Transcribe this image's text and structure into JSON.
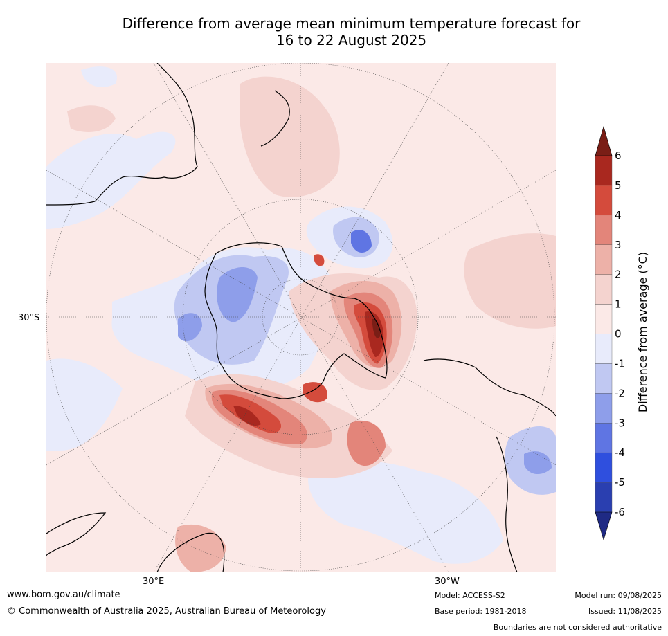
{
  "title": {
    "line1": "Difference from average mean minimum temperature forecast for",
    "line2": "16 to 22 August 2025"
  },
  "map": {
    "labels": {
      "lat_30s": "30°S",
      "lon_30e": "30°E",
      "lon_30w": "30°W"
    },
    "colors": {
      "ocean_neutral": "#fbe9e7",
      "land_line": "#000000"
    }
  },
  "colorbar": {
    "label": "Difference from average (°C)",
    "ticks": [
      "6",
      "5",
      "4",
      "3",
      "2",
      "1",
      "0",
      "-1",
      "-2",
      "-3",
      "-4",
      "-5",
      "-6"
    ],
    "bins": [
      {
        "range": "5 to 6",
        "color": "#a9281f"
      },
      {
        "range": "4 to 5",
        "color": "#d44b3c"
      },
      {
        "range": "3 to 4",
        "color": "#e3857a"
      },
      {
        "range": "2 to 3",
        "color": "#edb1a8"
      },
      {
        "range": "1 to 2",
        "color": "#f4d3cf"
      },
      {
        "range": "0 to 1",
        "color": "#fbe9e7"
      },
      {
        "range": "-1 to 0",
        "color": "#e8ebfb"
      },
      {
        "range": "-2 to -1",
        "color": "#c0c8f2"
      },
      {
        "range": "-3 to -2",
        "color": "#8e9eea"
      },
      {
        "range": "-4 to -3",
        "color": "#5f75e3"
      },
      {
        "range": "-5 to -4",
        "color": "#2f4fde"
      },
      {
        "range": "-6 to -5",
        "color": "#2a3fb0"
      }
    ],
    "over_color": "#7a1e16",
    "under_color": "#1f2a84"
  },
  "footer": {
    "website": "www.bom.gov.au/climate",
    "copyright": "© Commonwealth of Australia 2025, Australian Bureau of Meteorology",
    "model": "Model: ACCESS-S2",
    "base_period": "Base period: 1981-2018",
    "model_run": "Model run: 09/08/2025",
    "issued": "Issued: 11/08/2025",
    "disclaimer": "Boundaries are not considered authoritative"
  }
}
